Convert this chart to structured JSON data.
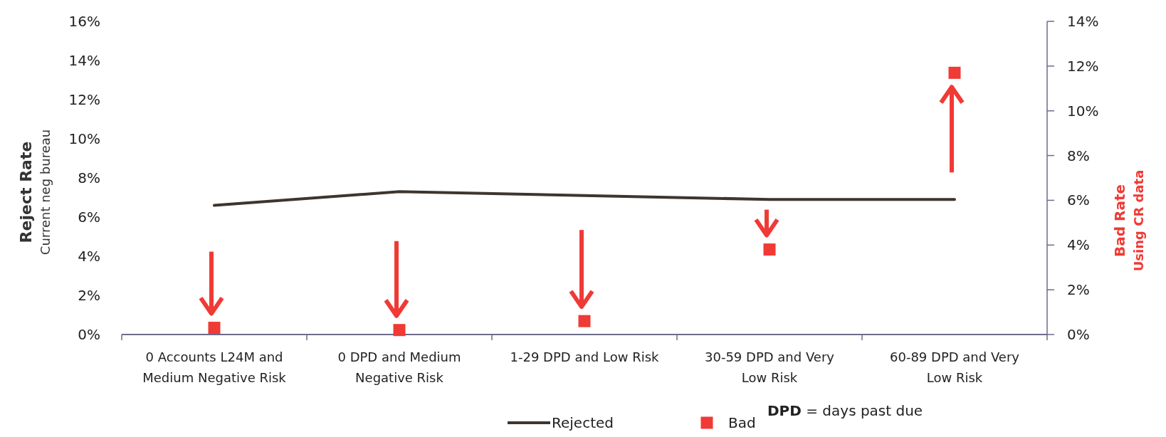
{
  "chart_data": {
    "type": "line",
    "ylabel": "Reject Rate\nCurrent neg bureau",
    "y2label": "Bad Rate\nUsing CR data",
    "categories": [
      "0 Accounts L24M and Medium Negative Risk",
      "0 DPD and Medium Negative Risk",
      "1-29 DPD and Low Risk",
      "30-59 DPD and Very Low Risk",
      "60-89 DPD and Very Low Risk"
    ],
    "series": [
      {
        "name": "Rejected",
        "color": "#3d3530",
        "marker": "none",
        "values": [
          6.6,
          7.3,
          7.1,
          6.9,
          6.9
        ]
      },
      {
        "name": "Bad",
        "type": "scatter",
        "color": "#f03a35",
        "marker": "square",
        "axis": "y2",
        "values": [
          0.3,
          0.2,
          0.6,
          3.8,
          11.7
        ]
      }
    ],
    "ylim": [
      0,
      16
    ],
    "yticks": [
      {
        "value": 0,
        "label": "0%"
      },
      {
        "value": 2,
        "label": "2%"
      },
      {
        "value": 4,
        "label": "4%"
      },
      {
        "value": 6,
        "label": "6%"
      },
      {
        "value": 8,
        "label": "8%"
      },
      {
        "value": 10,
        "label": "10%"
      },
      {
        "value": 12,
        "label": "12%"
      },
      {
        "value": 14,
        "label": "14%"
      },
      {
        "value": 16,
        "label": "16%"
      }
    ],
    "y2lim": [
      0,
      14
    ],
    "y2ticks": [
      {
        "value": 0,
        "label": "0%"
      },
      {
        "value": 2,
        "label": "2%"
      },
      {
        "value": 4,
        "label": "4%"
      },
      {
        "value": 6,
        "label": "6%"
      },
      {
        "value": 8,
        "label": "8%"
      },
      {
        "value": 10,
        "label": "10%"
      },
      {
        "value": 12,
        "label": "12%"
      },
      {
        "value": 14,
        "label": "14%"
      }
    ],
    "legend": "bottom",
    "annotations": [
      "DPD = days past due"
    ]
  }
}
